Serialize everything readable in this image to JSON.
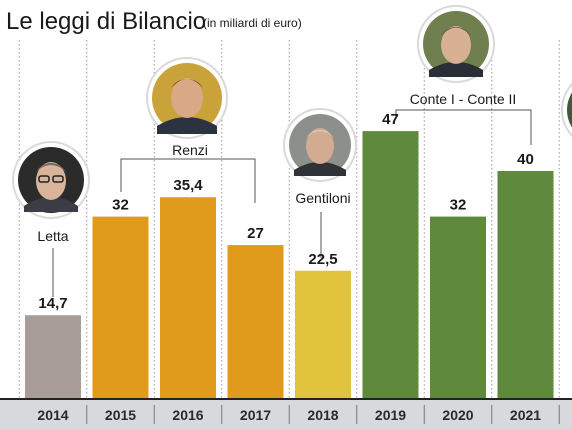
{
  "header": {
    "title": "Le leggi di Bilancio",
    "unit": "(in miliardi di euro)"
  },
  "chart_data": {
    "type": "bar",
    "title": "Le leggi di Bilancio",
    "subtitle": "(in miliardi di euro)",
    "xlabel": "",
    "ylabel": "",
    "ylim": [
      0,
      52
    ],
    "grid": false,
    "categories": [
      "2014",
      "2015",
      "2016",
      "2017",
      "2018",
      "2019",
      "2020",
      "2021"
    ],
    "values": [
      14.7,
      32,
      35.4,
      27,
      22.5,
      47,
      32,
      40
    ],
    "value_labels": [
      "14,7",
      "32",
      "35,4",
      "27",
      "22,5",
      "47",
      "32",
      "40"
    ],
    "bar_colors": [
      "#a89d96",
      "#e09a1c",
      "#e09a1c",
      "#e09a1c",
      "#e0c33a",
      "#5f8a3e",
      "#5f8a3e",
      "#5f8a3e"
    ],
    "governments": [
      {
        "name": "Letta",
        "years": [
          "2014"
        ],
        "color": "#a89d96"
      },
      {
        "name": "Renzi",
        "years": [
          "2015",
          "2016",
          "2017"
        ],
        "color": "#e09a1c"
      },
      {
        "name": "Gentiloni",
        "years": [
          "2018"
        ],
        "color": "#e0c33a"
      },
      {
        "name": "Conte I - Conte II",
        "years": [
          "2019",
          "2020",
          "2021"
        ],
        "color": "#5f8a3e"
      }
    ]
  },
  "colors": {
    "axis_band": "#d7d9dc",
    "axis_line": "#222222",
    "separator": "#9a9a9a",
    "connector": "#555555",
    "text": "#1a1a1a"
  }
}
